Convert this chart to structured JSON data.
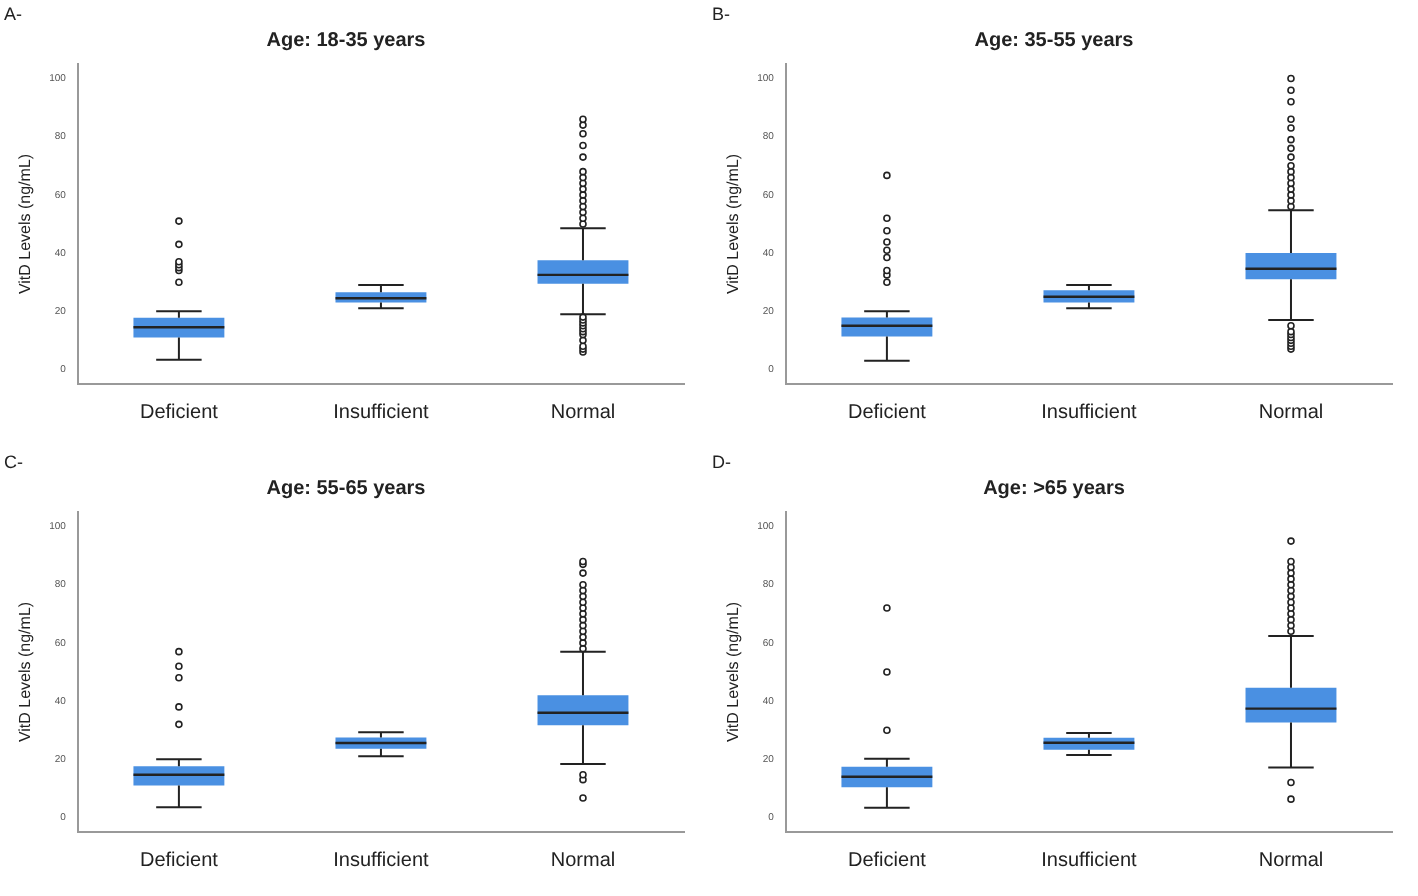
{
  "chart_data": [
    {
      "type": "box",
      "title": "Age: 18-35 years",
      "ylabel": "VitD Levels (ng/mL)",
      "annotations": [
        "A-"
      ],
      "categories": [
        "Deficient",
        "Insufficient",
        "Normal"
      ],
      "color": "#4a90e2",
      "ylim": [
        -5,
        105
      ],
      "yticks": [
        0,
        20,
        40,
        60,
        80,
        100
      ],
      "grid": false,
      "boxes": [
        {
          "low": 3.3,
          "q1": 11,
          "median": 14.5,
          "q3": 17.8,
          "high": 20,
          "outliers": [
            30,
            34,
            35,
            36,
            37,
            43,
            51
          ]
        },
        {
          "low": 21,
          "q1": 23,
          "median": 24.5,
          "q3": 26.5,
          "high": 29
        },
        {
          "low": 19,
          "q1": 29.5,
          "median": 32.5,
          "q3": 37.5,
          "high": 48.5,
          "outliers": [
            6,
            7,
            8,
            10,
            12,
            13,
            14,
            15,
            16,
            17,
            18,
            50,
            52,
            54,
            56,
            58,
            60,
            62,
            64,
            66,
            68,
            73,
            77,
            81,
            84,
            86
          ]
        }
      ]
    },
    {
      "type": "box",
      "title": "Age: 35-55 years",
      "ylabel": "VitD Levels (ng/mL)",
      "annotations": [
        "B-"
      ],
      "categories": [
        "Deficient",
        "Insufficient",
        "Normal"
      ],
      "color": "#4a90e2",
      "ylim": [
        -5,
        105
      ],
      "yticks": [
        0,
        20,
        40,
        60,
        80,
        100
      ],
      "grid": false,
      "boxes": [
        {
          "low": 3,
          "q1": 11.3,
          "median": 15,
          "q3": 17.9,
          "high": 20,
          "outliers": [
            30,
            32.5,
            34,
            38.5,
            41,
            43.8,
            47.7,
            52,
            66.7
          ]
        },
        {
          "low": 21,
          "q1": 23,
          "median": 25,
          "q3": 27.2,
          "high": 29
        },
        {
          "low": 17,
          "q1": 31,
          "median": 34.6,
          "q3": 40,
          "high": 54.7,
          "outliers": [
            7,
            8,
            9,
            10,
            11,
            12,
            13,
            15,
            56,
            58,
            60,
            62,
            64,
            66,
            68,
            70,
            73,
            76,
            79,
            83,
            86,
            92,
            96,
            100
          ]
        }
      ]
    },
    {
      "type": "box",
      "title": "Age: 55-65 years",
      "ylabel": "VitD Levels (ng/mL)",
      "annotations": [
        "C-"
      ],
      "categories": [
        "Deficient",
        "Insufficient",
        "Normal"
      ],
      "color": "#4a90e2",
      "ylim": [
        -5,
        105
      ],
      "yticks": [
        0,
        20,
        40,
        60,
        80,
        100
      ],
      "grid": false,
      "boxes": [
        {
          "low": 3.5,
          "q1": 11,
          "median": 14.7,
          "q3": 17.6,
          "high": 20,
          "outliers": [
            32,
            38,
            48,
            52,
            57
          ]
        },
        {
          "low": 21,
          "q1": 23.6,
          "median": 25.6,
          "q3": 27.5,
          "high": 29.3
        },
        {
          "low": 18.4,
          "q1": 31.7,
          "median": 36,
          "q3": 42,
          "high": 57,
          "outliers": [
            6.7,
            13,
            14.7,
            58,
            60,
            62,
            64,
            66,
            68,
            70,
            72,
            74,
            76,
            78,
            80,
            84,
            87,
            88
          ]
        }
      ]
    },
    {
      "type": "box",
      "title": "Age: >65 years",
      "ylabel": "VitD Levels (ng/mL)",
      "annotations": [
        "D-"
      ],
      "categories": [
        "Deficient",
        "Insufficient",
        "Normal"
      ],
      "color": "#4a90e2",
      "ylim": [
        -5,
        105
      ],
      "yticks": [
        0,
        20,
        40,
        60,
        80,
        100
      ],
      "grid": false,
      "boxes": [
        {
          "low": 3.3,
          "q1": 10.4,
          "median": 14,
          "q3": 17.4,
          "high": 20.2,
          "outliers": [
            30,
            50,
            72
          ]
        },
        {
          "low": 21.5,
          "q1": 23.3,
          "median": 25.7,
          "q3": 27.4,
          "high": 29
        },
        {
          "low": 17.2,
          "q1": 32.6,
          "median": 37.4,
          "q3": 44.6,
          "high": 62.4,
          "outliers": [
            6.3,
            12,
            64,
            66,
            68,
            70,
            72,
            74,
            76,
            78,
            80,
            82,
            84,
            86,
            88,
            95
          ]
        }
      ]
    }
  ]
}
